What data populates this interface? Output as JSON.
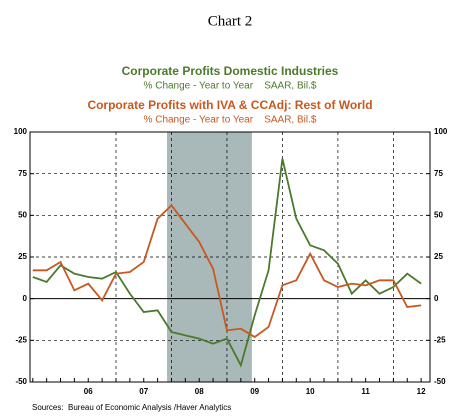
{
  "chart_data": {
    "type": "line",
    "title": "Chart 2",
    "source": "Sources:  Bureau of Economic Analysis /Haver Analytics",
    "x": [
      2005.5,
      2005.75,
      2006,
      2006.25,
      2006.5,
      2006.75,
      2007,
      2007.25,
      2007.5,
      2007.75,
      2008,
      2008.25,
      2008.5,
      2008.75,
      2009,
      2009.25,
      2009.5,
      2009.75,
      2010,
      2010.25,
      2010.5,
      2010.75,
      2011,
      2011.25,
      2011.5,
      2011.75,
      2012,
      2012.25,
      2012.5
    ],
    "series": [
      {
        "name": "Corporate Profits Domestic Industries",
        "subtitle": "% Change - Year to Year    SAAR, Bil.$",
        "color": "#4b7a2b",
        "values": [
          13,
          10,
          20,
          15,
          13,
          12,
          16,
          3,
          -8,
          -7,
          -20,
          -22,
          -24,
          -27,
          -24,
          -40,
          -10,
          17,
          84,
          48,
          32,
          29,
          21,
          3,
          11,
          3,
          7,
          15,
          9
        ]
      },
      {
        "name": "Corporate Profits with IVA & CCAdj: Rest of World",
        "subtitle": "% Change - Year to Year    SAAR, Bil.$",
        "color": "#c8581e",
        "values": [
          17,
          17,
          22,
          5,
          9,
          -1,
          15,
          16,
          22,
          48,
          56,
          45,
          34,
          18,
          -19,
          -18,
          -23,
          -17,
          8,
          11,
          27,
          11,
          7,
          9,
          8,
          11,
          11,
          -5,
          -4
        ]
      }
    ],
    "xlim": [
      2005.45,
      2012.66
    ],
    "xticks": [
      {
        "value": 2006.5,
        "label": "06"
      },
      {
        "value": 2007.5,
        "label": "07"
      },
      {
        "value": 2008.5,
        "label": "08"
      },
      {
        "value": 2009.5,
        "label": "09"
      },
      {
        "value": 2010.5,
        "label": "10"
      },
      {
        "value": 2011.5,
        "label": "11"
      },
      {
        "value": 2012.5,
        "label": "12"
      }
    ],
    "xgrid": [
      2007,
      2008,
      2009,
      2010,
      2011,
      2012
    ],
    "shade": [
      2007.92,
      2009.45
    ],
    "shade_color": "#a9b9b9",
    "ylim": [
      -50,
      100
    ],
    "yticks": [
      -50,
      -25,
      0,
      25,
      50,
      75,
      100
    ],
    "grid": true
  }
}
